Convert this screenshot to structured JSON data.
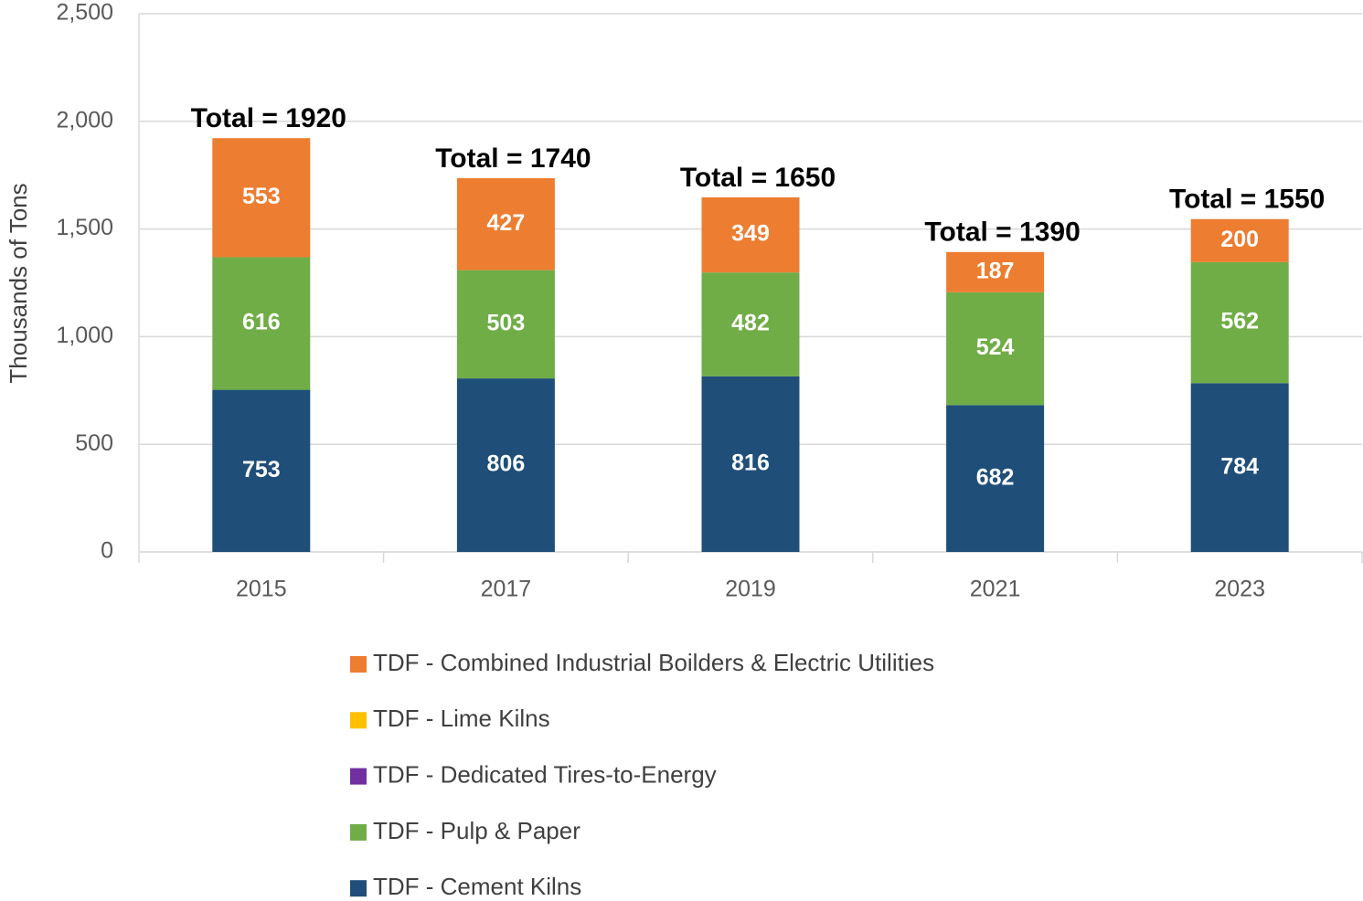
{
  "chart_data": {
    "type": "stacked_bar",
    "y_label": "Thousands of Tons",
    "categories": [
      "2015",
      "2017",
      "2019",
      "2021",
      "2023"
    ],
    "series": [
      {
        "name": "TDF - Cement Kilns",
        "color": "#1f4e79",
        "values": [
          753,
          806,
          816,
          682,
          784
        ],
        "data_labels": true
      },
      {
        "name": "TDF - Pulp & Paper",
        "color": "#70ad47",
        "values": [
          616,
          503,
          482,
          524,
          562
        ],
        "data_labels": true
      },
      {
        "name": "TDF - Dedicated Tires-to-Energy",
        "color": "#7030a0",
        "values": [
          0,
          0,
          0,
          0,
          0
        ],
        "data_labels": false
      },
      {
        "name": "TDF - Lime Kilns",
        "color": "#ffc000",
        "values": [
          0,
          0,
          0,
          0,
          0
        ],
        "data_labels": false
      },
      {
        "name": "TDF - Combined Industrial Boilders & Electric Utilities",
        "color": "#ed7d31",
        "values": [
          553,
          427,
          349,
          187,
          200
        ],
        "data_labels": true
      }
    ],
    "total_labels": [
      "Total = 1920",
      "Total = 1740",
      "Total = 1650",
      "Total = 1390",
      "Total = 1550"
    ],
    "ylim": [
      0,
      2500
    ],
    "yticks": [
      0,
      500,
      {
        "value": 1000,
        "label": "1,000"
      },
      {
        "value": 1500,
        "label": "1,500"
      },
      {
        "value": 2000,
        "label": "2,000"
      },
      {
        "value": 2500,
        "label": "2,500"
      }
    ],
    "grid": true,
    "legend": "bottom"
  }
}
